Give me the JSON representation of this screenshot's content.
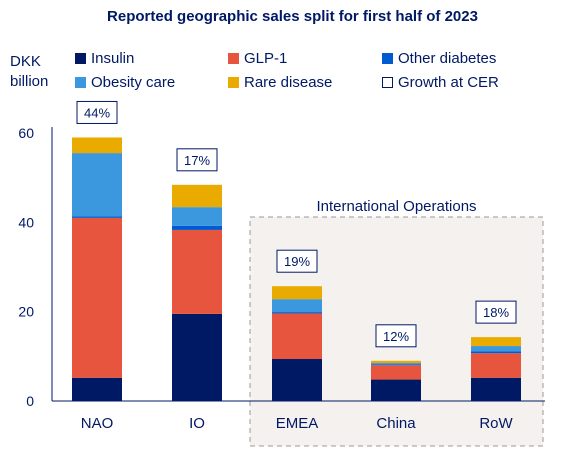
{
  "chart_data": {
    "type": "bar",
    "stacked": true,
    "title": "Reported geographic sales split for first half of 2023",
    "ylabel": "DKK billion",
    "ylim": [
      0,
      60
    ],
    "yticks": [
      0,
      20,
      40,
      60
    ],
    "grid": false,
    "legend_position": "top",
    "categories": [
      "NAO",
      "IO",
      "EMEA",
      "China",
      "RoW"
    ],
    "series": [
      {
        "name": "Insulin",
        "color": "#001965",
        "values": [
          5.2,
          19.5,
          9.4,
          4.8,
          5.2
        ]
      },
      {
        "name": "GLP-1",
        "color": "#E8553F",
        "values": [
          35.8,
          18.8,
          10.2,
          3.2,
          5.5
        ]
      },
      {
        "name": "Other diabetes",
        "color": "#005AD2",
        "values": [
          0.3,
          0.9,
          0.3,
          0.2,
          0.4
        ]
      },
      {
        "name": "Obesity care",
        "color": "#3B97DE",
        "values": [
          14.2,
          4.2,
          2.9,
          0.3,
          1.2
        ]
      },
      {
        "name": "Rare disease",
        "color": "#EAAB00",
        "values": [
          3.5,
          5.0,
          2.9,
          0.5,
          2.0
        ]
      }
    ],
    "growth_label": "Growth at CER",
    "growth_at_cer": [
      "44%",
      "17%",
      "19%",
      "12%",
      "18%"
    ],
    "group_annotation": {
      "label": "International Operations",
      "categories": [
        "EMEA",
        "China",
        "RoW"
      ]
    }
  }
}
